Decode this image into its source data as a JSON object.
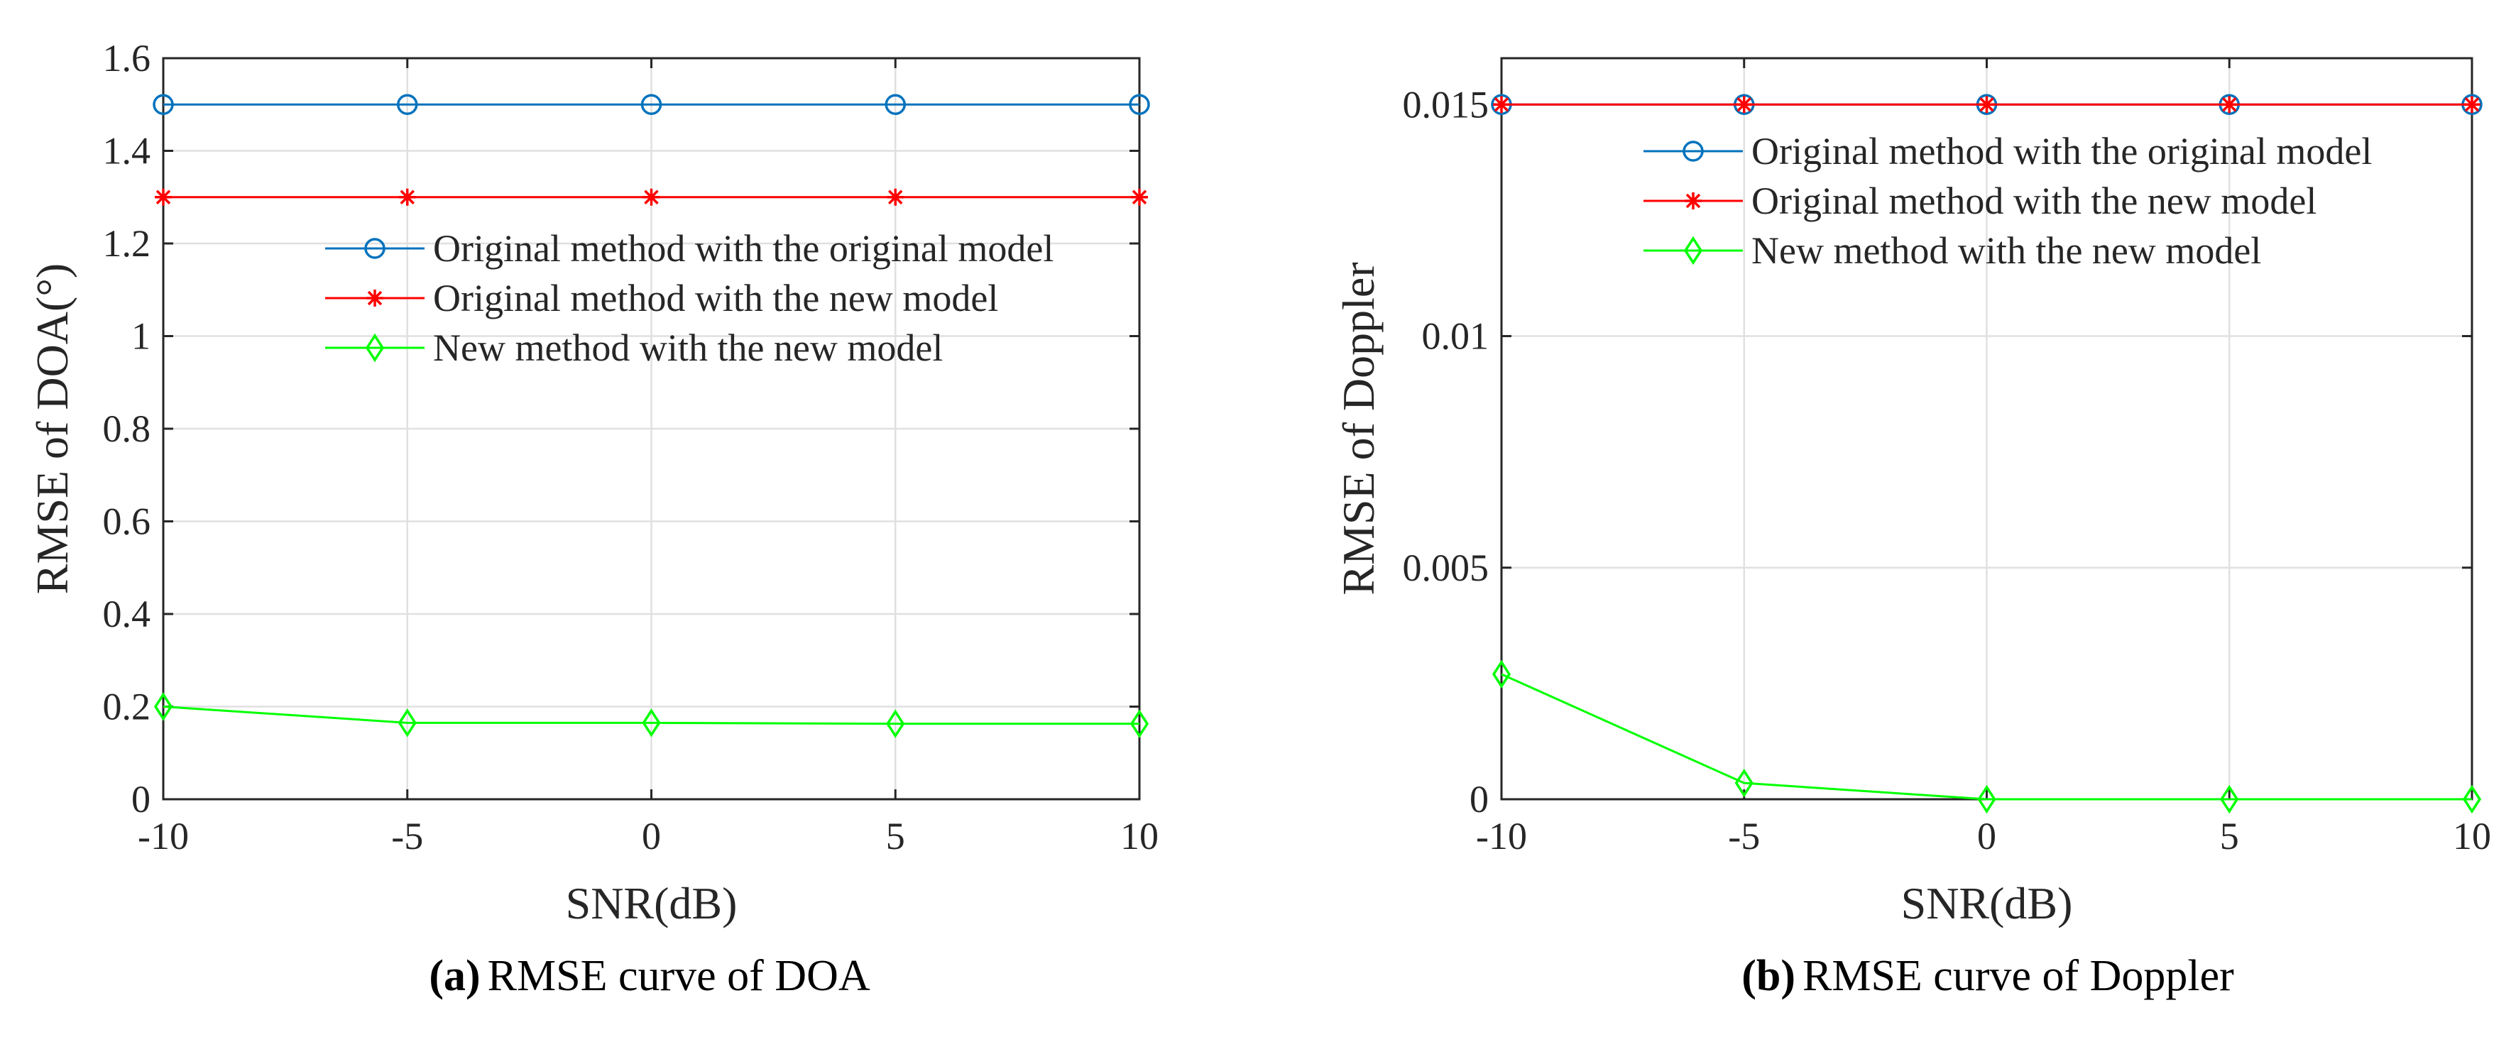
{
  "figure": {
    "captions": [
      {
        "tag": "(a)",
        "text": "RMSE curve of DOA"
      },
      {
        "tag": "(b)",
        "text": "RMSE curve of Doppler"
      }
    ]
  },
  "series_style": [
    {
      "color": "#0072BD",
      "marker": "circle"
    },
    {
      "color": "#FF0000",
      "marker": "star"
    },
    {
      "color": "#00FF00",
      "marker": "diamond"
    }
  ],
  "chart_data": [
    {
      "type": "line",
      "title": "",
      "xlabel": "SNR(dB)",
      "ylabel": "RMSE of DOA(°)",
      "x": [
        -10,
        -5,
        0,
        5,
        10
      ],
      "xlim": [
        -10,
        10
      ],
      "ylim": [
        0,
        1.6
      ],
      "xticks": [
        -10,
        -5,
        0,
        5,
        10
      ],
      "xtick_labels": [
        "-10",
        "-5",
        "0",
        "5",
        "10"
      ],
      "yticks": [
        0,
        0.2,
        0.4,
        0.6,
        0.8,
        1,
        1.2,
        1.4,
        1.6
      ],
      "ytick_labels": [
        "0",
        "0.2",
        "0.4",
        "0.6",
        "0.8",
        "1",
        "1.2",
        "1.4",
        "1.6"
      ],
      "grid": true,
      "legend_position": "center-right",
      "series": [
        {
          "name": "Original method with the original model",
          "values": [
            1.5,
            1.5,
            1.5,
            1.5,
            1.5
          ]
        },
        {
          "name": "Original method with the new model",
          "values": [
            1.3,
            1.3,
            1.3,
            1.3,
            1.3
          ]
        },
        {
          "name": "New method with the new model",
          "values": [
            0.2,
            0.165,
            0.165,
            0.163,
            0.163
          ]
        }
      ]
    },
    {
      "type": "line",
      "title": "",
      "xlabel": "SNR(dB)",
      "ylabel": "RMSE of Doppler",
      "x": [
        -10,
        -5,
        0,
        5,
        10
      ],
      "xlim": [
        -10,
        10
      ],
      "ylim": [
        0,
        0.016
      ],
      "xticks": [
        -10,
        -5,
        0,
        5,
        10
      ],
      "xtick_labels": [
        "-10",
        "-5",
        "0",
        "5",
        "10"
      ],
      "yticks": [
        0,
        0.005,
        0.01,
        0.015
      ],
      "ytick_labels": [
        "0",
        "0.005",
        "0.01",
        "0.015"
      ],
      "grid": true,
      "legend_position": "top-right",
      "series": [
        {
          "name": "Original method with the original model",
          "values": [
            0.015,
            0.015,
            0.015,
            0.015,
            0.015
          ]
        },
        {
          "name": "Original method with the new model",
          "values": [
            0.015,
            0.015,
            0.015,
            0.015,
            0.015
          ]
        },
        {
          "name": "New method with the new model",
          "values": [
            0.0027,
            0.00035,
            0.0,
            0.0,
            0.0
          ]
        }
      ]
    }
  ]
}
